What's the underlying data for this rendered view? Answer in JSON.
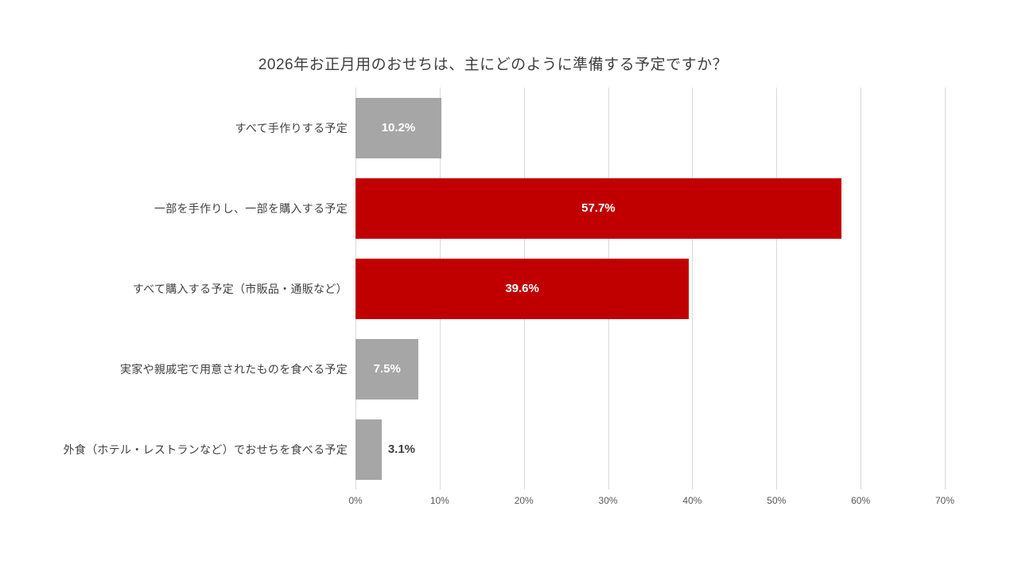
{
  "chart_data": {
    "type": "bar",
    "orientation": "horizontal",
    "title": "2026年お正月用のおせちは、主にどのように準備する予定ですか？",
    "categories": [
      "すべて手作りする予定",
      "一部を手作りし、一部を購入する予定",
      "すべて購入する予定（市販品・通販など）",
      "実家や親戚宅で用意されたものを食べる予定",
      "外食（ホテル・レストランなど）でおせちを食べる予定"
    ],
    "values": [
      10.2,
      57.7,
      39.6,
      7.5,
      3.1
    ],
    "value_labels": [
      "10.2%",
      "57.7%",
      "39.6%",
      "7.5%",
      "3.1%"
    ],
    "bar_colors": [
      "#a6a6a6",
      "#c00000",
      "#c00000",
      "#a6a6a6",
      "#a6a6a6"
    ],
    "xlim": [
      0,
      70
    ],
    "x_ticks": [
      "0%",
      "10%",
      "20%",
      "30%",
      "40%",
      "50%",
      "60%",
      "70%"
    ],
    "x_tick_values": [
      0,
      10,
      20,
      30,
      40,
      50,
      60,
      70
    ],
    "grid": true,
    "legend": "none",
    "inside_label_threshold": 5,
    "colors": {
      "bar_gray": "#a6a6a6",
      "bar_red": "#c00000",
      "grid": "#d9d9d9",
      "label_inside": "#ffffff",
      "label_outside": "#404040",
      "title_text": "#404040",
      "tick_text": "#595959"
    }
  }
}
